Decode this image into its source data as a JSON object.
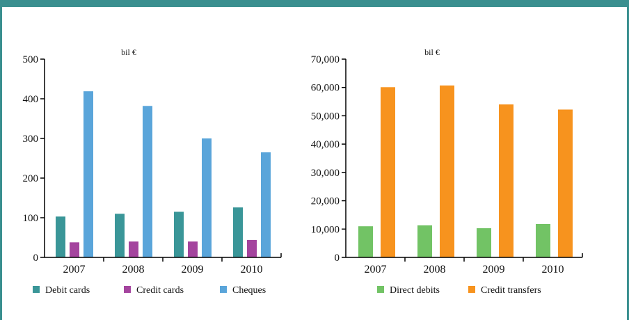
{
  "chart_data": [
    {
      "type": "bar",
      "unit_label": "bil €",
      "categories": [
        "2007",
        "2008",
        "2009",
        "2010"
      ],
      "ylim": [
        0,
        500
      ],
      "yticks": [
        "0",
        "100",
        "200",
        "300",
        "400",
        "500"
      ],
      "legend_position": "bottom",
      "grid": false,
      "series": [
        {
          "name": "Debit cards",
          "color": "#3a9698",
          "values": [
            103,
            110,
            115,
            126
          ]
        },
        {
          "name": "Credit cards",
          "color": "#a4449e",
          "values": [
            38,
            40,
            40,
            44
          ]
        },
        {
          "name": "Cheques",
          "color": "#5aa5da",
          "values": [
            419,
            382,
            300,
            265
          ]
        }
      ]
    },
    {
      "type": "bar",
      "unit_label": "bil €",
      "categories": [
        "2007",
        "2008",
        "2009",
        "2010"
      ],
      "ylim": [
        0,
        70000
      ],
      "yticks": [
        "0",
        "10,000",
        "20,000",
        "30,000",
        "40,000",
        "50,000",
        "60,000",
        "70,000"
      ],
      "legend_position": "bottom",
      "grid": false,
      "series": [
        {
          "name": "Direct debits",
          "color": "#72c365",
          "values": [
            11000,
            11300,
            10300,
            11800
          ]
        },
        {
          "name": "Credit transfers",
          "color": "#f7931e",
          "values": [
            60100,
            60700,
            54000,
            52200
          ]
        }
      ]
    }
  ]
}
